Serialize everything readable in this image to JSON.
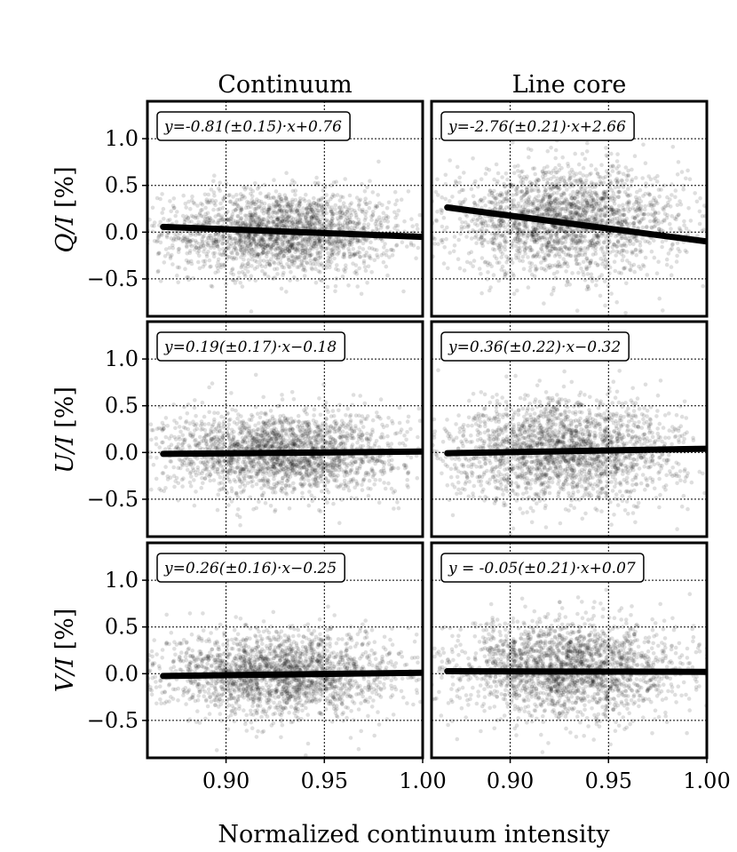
{
  "figure": {
    "xlabel": "Normalized continuum intensity",
    "columns": [
      "Continuum",
      "Line core"
    ],
    "rows": [
      {
        "label_main": "Q/I",
        "label_unit": "[%]"
      },
      {
        "label_main": "U/I",
        "label_unit": "[%]"
      },
      {
        "label_main": "V/I",
        "label_unit": "[%]"
      }
    ]
  },
  "chart_data": [
    {
      "type": "scatter",
      "column": "Continuum",
      "ylabel": "Q/I [%]",
      "fit_text": "y=-0.81(±0.15)·x+0.76",
      "fit": {
        "slope": -0.81,
        "intercept": 0.76,
        "x_start": 0.868,
        "x_end": 1.0
      },
      "cloud": {
        "x_center": 0.928,
        "x_spread": 0.03,
        "y_center": 0.0,
        "y_spread": 0.22,
        "n": 2200
      },
      "xlim": [
        0.86,
        1.0
      ],
      "ylim": [
        -0.9,
        1.4
      ],
      "xticks": [
        "0.90",
        "0.95",
        "1.00"
      ],
      "yticks": [
        "1.0",
        "0.5",
        "0.0",
        "−0.5"
      ],
      "grid": true
    },
    {
      "type": "scatter",
      "column": "Line core",
      "ylabel": "Q/I [%]",
      "fit_text": "y=-2.76(±0.21)·x+2.66",
      "fit": {
        "slope": -2.76,
        "intercept": 2.66,
        "x_start": 0.868,
        "x_end": 1.0
      },
      "cloud": {
        "x_center": 0.928,
        "x_spread": 0.03,
        "y_center": 0.12,
        "y_spread": 0.28,
        "n": 2200
      },
      "xlim": [
        0.86,
        1.0
      ],
      "ylim": [
        -0.9,
        1.4
      ],
      "xticks": [
        "0.90",
        "0.95",
        "1.00"
      ],
      "yticks": [
        "1.0",
        "0.5",
        "0.0",
        "−0.5"
      ],
      "grid": true
    },
    {
      "type": "scatter",
      "column": "Continuum",
      "ylabel": "U/I [%]",
      "fit_text": "y=0.19(±0.17)·x−0.18",
      "fit": {
        "slope": 0.19,
        "intercept": -0.18,
        "x_start": 0.868,
        "x_end": 1.0
      },
      "cloud": {
        "x_center": 0.928,
        "x_spread": 0.03,
        "y_center": 0.0,
        "y_spread": 0.22,
        "n": 2200
      },
      "xlim": [
        0.86,
        1.0
      ],
      "ylim": [
        -0.9,
        1.4
      ],
      "xticks": [
        "0.90",
        "0.95",
        "1.00"
      ],
      "yticks": [
        "1.0",
        "0.5",
        "0.0",
        "−0.5"
      ],
      "grid": true
    },
    {
      "type": "scatter",
      "column": "Line core",
      "ylabel": "U/I [%]",
      "fit_text": "y=0.36(±0.22)·x−0.32",
      "fit": {
        "slope": 0.36,
        "intercept": -0.32,
        "x_start": 0.868,
        "x_end": 1.0
      },
      "cloud": {
        "x_center": 0.928,
        "x_spread": 0.03,
        "y_center": 0.02,
        "y_spread": 0.27,
        "n": 2200
      },
      "xlim": [
        0.86,
        1.0
      ],
      "ylim": [
        -0.9,
        1.4
      ],
      "xticks": [
        "0.90",
        "0.95",
        "1.00"
      ],
      "yticks": [
        "1.0",
        "0.5",
        "0.0",
        "−0.5"
      ],
      "grid": true
    },
    {
      "type": "scatter",
      "column": "Continuum",
      "ylabel": "V/I [%]",
      "fit_text": "y=0.26(±0.16)·x−0.25",
      "fit": {
        "slope": 0.26,
        "intercept": -0.25,
        "x_start": 0.868,
        "x_end": 1.0
      },
      "cloud": {
        "x_center": 0.928,
        "x_spread": 0.03,
        "y_center": 0.0,
        "y_spread": 0.22,
        "n": 2200
      },
      "xlim": [
        0.86,
        1.0
      ],
      "ylim": [
        -0.9,
        1.4
      ],
      "xticks": [
        "0.90",
        "0.95",
        "1.00"
      ],
      "yticks": [
        "1.0",
        "0.5",
        "0.0",
        "−0.5"
      ],
      "grid": true
    },
    {
      "type": "scatter",
      "column": "Line core",
      "ylabel": "V/I [%]",
      "fit_text": "y = -0.05(±0.21)·x+0.07",
      "fit": {
        "slope": -0.05,
        "intercept": 0.07,
        "x_start": 0.868,
        "x_end": 1.0
      },
      "cloud": {
        "x_center": 0.928,
        "x_spread": 0.03,
        "y_center": 0.05,
        "y_spread": 0.26,
        "n": 2200
      },
      "xlim": [
        0.86,
        1.0
      ],
      "ylim": [
        -0.9,
        1.4
      ],
      "xticks": [
        "0.90",
        "0.95",
        "1.00"
      ],
      "yticks": [
        "1.0",
        "0.5",
        "0.0",
        "−0.5"
      ],
      "grid": true
    }
  ]
}
